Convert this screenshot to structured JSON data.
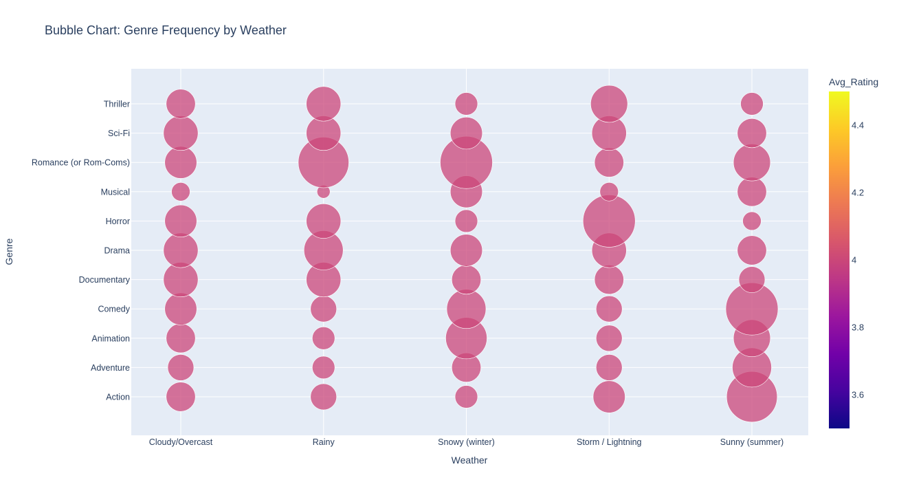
{
  "chart_data": {
    "type": "scatter",
    "title": "Bubble Chart: Genre Frequency by Weather",
    "xlabel": "Weather",
    "ylabel": "Genre",
    "x_categories": [
      "Cloudy/Overcast",
      "Rainy",
      "Snowy (winter)",
      "Storm / Lightning",
      "Sunny (summer)"
    ],
    "y_categories": [
      "Action",
      "Adventure",
      "Animation",
      "Comedy",
      "Documentary",
      "Drama",
      "Horror",
      "Musical",
      "Romance (or Rom-Coms)",
      "Sci-Fi",
      "Thriller"
    ],
    "size_matrix": [
      [
        5,
        4,
        5,
        6,
        7,
        7,
        6,
        2,
        6,
        7,
        5
      ],
      [
        4,
        3,
        3,
        4,
        7,
        9,
        7,
        1,
        15,
        7,
        7
      ],
      [
        3,
        5,
        10,
        9,
        5,
        6,
        3,
        6,
        16,
        6,
        3
      ],
      [
        6,
        4,
        4,
        4,
        5,
        7,
        16,
        2,
        5,
        7,
        8
      ],
      [
        15,
        9,
        8,
        16,
        4,
        5,
        2,
        5,
        8,
        5,
        3
      ]
    ],
    "colorbar": {
      "title": "Avg_Rating",
      "ticks": [
        "3.6",
        "3.8",
        "4",
        "4.2",
        "4.4"
      ],
      "range": [
        3.5,
        4.5
      ],
      "marker_value": 4.0
    },
    "grid": true,
    "legend": "none"
  }
}
